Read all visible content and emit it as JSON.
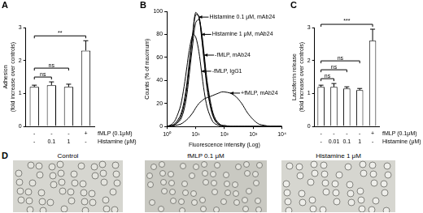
{
  "chart_data": [
    {
      "panel": "A",
      "type": "bar",
      "y_label": [
        "Adhesion",
        "(fold increase over controls)"
      ],
      "values": [
        1.2,
        1.25,
        1.2,
        2.3
      ],
      "errors": [
        0.05,
        0.1,
        0.08,
        0.3
      ],
      "color": "#ffffff",
      "ylim": [
        0,
        3
      ],
      "yticks": [
        0,
        1,
        2,
        3
      ],
      "grid": false,
      "conditions": [
        {
          "label": "fMLP (0.1μM)",
          "values": [
            "-",
            "-",
            "-",
            "+"
          ]
        },
        {
          "label": "Histamine (μM)",
          "values": [
            "-",
            "0.1",
            "1",
            "-"
          ]
        }
      ],
      "significance": [
        {
          "from": 0,
          "to": 1,
          "label": "ns"
        },
        {
          "from": 0,
          "to": 2,
          "label": "ns"
        },
        {
          "from": 0,
          "to": 3,
          "label": "**"
        }
      ]
    },
    {
      "panel": "B",
      "type": "line",
      "log": "x",
      "grid": false,
      "x_label": "Fluorescence intensity (Log)",
      "y_label": "Counts (% of maximum)",
      "x": [
        1,
        1.5,
        2,
        3,
        4,
        5,
        6,
        8,
        10,
        13,
        16,
        20,
        25,
        32,
        40,
        50,
        63,
        80,
        100,
        160,
        250,
        400,
        630,
        1000,
        1600,
        2500,
        4000,
        10000
      ],
      "series": [
        {
          "color": "#000000",
          "values": [
            0,
            1,
            3,
            10,
            22,
            38,
            55,
            82,
            99,
            95,
            78,
            55,
            33,
            18,
            9,
            4,
            2,
            1,
            0,
            0,
            0,
            0,
            0,
            0,
            0,
            0,
            0,
            0
          ]
        },
        {
          "color": "#000000",
          "values": [
            0,
            1,
            2,
            8,
            19,
            34,
            52,
            80,
            97,
            96,
            80,
            58,
            36,
            20,
            10,
            5,
            2,
            1,
            0,
            0,
            0,
            0,
            0,
            0,
            0,
            0,
            0,
            0
          ]
        },
        {
          "color": "#000000",
          "values": [
            0,
            0,
            2,
            6,
            15,
            28,
            45,
            72,
            90,
            93,
            83,
            62,
            40,
            23,
            12,
            6,
            3,
            1,
            1,
            0,
            0,
            0,
            0,
            0,
            0,
            0,
            0,
            0
          ]
        },
        {
          "color": "#000000",
          "values": [
            0,
            2,
            6,
            18,
            35,
            52,
            66,
            80,
            78,
            65,
            48,
            30,
            17,
            9,
            4,
            2,
            1,
            0,
            0,
            0,
            0,
            0,
            0,
            0,
            0,
            0,
            0,
            0
          ]
        },
        {
          "color": "#000000",
          "values": [
            0,
            0,
            1,
            2,
            4,
            6,
            8,
            12,
            16,
            20,
            22,
            24,
            25,
            26,
            27,
            28,
            29,
            30,
            30,
            29,
            26,
            20,
            12,
            6,
            2,
            1,
            0,
            0
          ]
        }
      ],
      "xlim": [
        1,
        10000
      ],
      "xticks": [
        {
          "value": 1,
          "label": "10⁰"
        },
        {
          "value": 10,
          "label": "10¹"
        },
        {
          "value": 100,
          "label": "10²"
        },
        {
          "value": 1000,
          "label": "10³"
        },
        {
          "value": 10000,
          "label": "10⁴"
        }
      ],
      "ylim": [
        0,
        100
      ],
      "yticks": [
        0,
        20,
        40,
        60,
        80,
        100
      ],
      "annotations": [
        {
          "text": "Histamine 0.1 μM, mAb24",
          "x": 13,
          "y": 95
        },
        {
          "text": "Histamine 1 μM, mAb24",
          "x": 16,
          "y": 80
        },
        {
          "text": "-fMLP, mAb24",
          "x": 20,
          "y": 62
        },
        {
          "text": "-fMLP, IgG1",
          "x": 16,
          "y": 48
        },
        {
          "text": "+fMLP, mAb24",
          "x": 160,
          "y": 29
        }
      ]
    },
    {
      "panel": "C",
      "type": "bar",
      "y_label": [
        "Lactoferrin release",
        "(fold increase over controls)"
      ],
      "values": [
        1.2,
        1.2,
        1.15,
        1.1,
        2.6
      ],
      "errors": [
        0.05,
        0.1,
        0.05,
        0.05,
        0.35
      ],
      "color": "#ffffff",
      "ylim": [
        0,
        3
      ],
      "yticks": [
        0,
        1,
        2,
        3
      ],
      "grid": false,
      "conditions": [
        {
          "label": "fMLP (0.1μM)",
          "values": [
            "-",
            "-",
            "-",
            "-",
            "+"
          ]
        },
        {
          "label": "Histamine (μM)",
          "values": [
            "-",
            "0.01",
            "0.1",
            "1",
            "-"
          ]
        }
      ],
      "significance": [
        {
          "from": 0,
          "to": 1,
          "label": "ns"
        },
        {
          "from": 0,
          "to": 2,
          "label": "ns"
        },
        {
          "from": 0,
          "to": 3,
          "label": "ns"
        },
        {
          "from": 0,
          "to": 4,
          "label": "***"
        }
      ]
    }
  ],
  "images": {
    "panel": "D",
    "captions": [
      "Control",
      "fMLP 0.1 μM",
      "Histamine 1 μM"
    ]
  }
}
